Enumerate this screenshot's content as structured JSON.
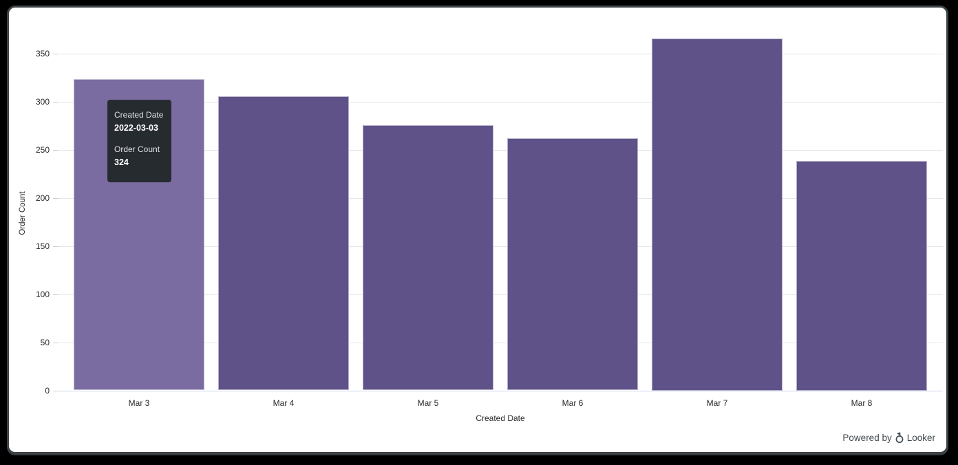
{
  "chart_data": {
    "type": "bar",
    "title": "",
    "categories": [
      "Mar 3",
      "Mar 4",
      "Mar 5",
      "Mar 6",
      "Mar 7",
      "Mar 8"
    ],
    "values": [
      324,
      306,
      276,
      262,
      366,
      239
    ],
    "xlabel": "Created Date",
    "ylabel": "Order Count",
    "y_ticks": [
      0,
      50,
      100,
      150,
      200,
      250,
      300,
      350
    ],
    "ylim": [
      0,
      366
    ],
    "grid": true,
    "legend": "none",
    "hovered_index": 0,
    "colors": {
      "bar": "#5e5288",
      "bar_hover": "#7a6ca1",
      "grid": "#e6e6e6",
      "axis_line": "#ccd6eb",
      "tick": "#cccccc",
      "label": "#282828"
    }
  },
  "tooltip": {
    "bg": "#262b30",
    "rows": [
      {
        "label": "Created Date",
        "value": "2022-03-03"
      },
      {
        "label": "Order Count",
        "value": "324"
      }
    ]
  },
  "footer": {
    "powered_by": "Powered by",
    "brand": "Looker"
  }
}
